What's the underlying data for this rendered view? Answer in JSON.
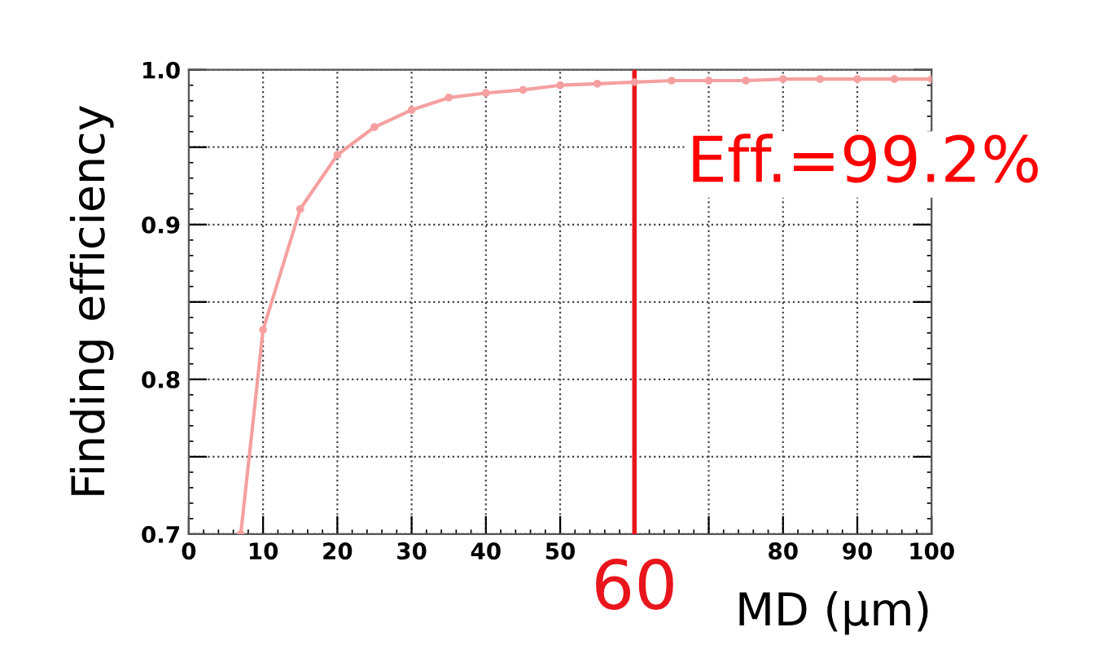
{
  "chart_data": {
    "type": "line",
    "xlabel": "MD (μm)",
    "ylabel": "Finding efficiency",
    "x": [
      7,
      10,
      15,
      20,
      25,
      30,
      35,
      40,
      45,
      50,
      55,
      60,
      65,
      70,
      75,
      80,
      85,
      90,
      95,
      100
    ],
    "series": [
      {
        "color": "#f5a0a0",
        "values": [
          0.7,
          0.832,
          0.91,
          0.945,
          0.963,
          0.974,
          0.982,
          0.985,
          0.987,
          0.99,
          0.991,
          0.992,
          0.993,
          0.993,
          0.993,
          0.994,
          0.994,
          0.994,
          0.994,
          0.994
        ]
      }
    ],
    "xlim": [
      0,
      100
    ],
    "ylim": [
      0.7,
      1.0
    ],
    "xticks": [
      0,
      10,
      20,
      30,
      40,
      50,
      {
        "value": 60,
        "label": null
      },
      {
        "value": 70,
        "label": null
      },
      80,
      90,
      100
    ],
    "yticks": [
      0.7,
      {
        "value": 0.75,
        "label": null
      },
      0.8,
      {
        "value": 0.85,
        "label": null
      },
      0.9,
      {
        "value": 0.95,
        "label": null
      },
      {
        "value": 1.0,
        "label": "1.0"
      }
    ],
    "grid": true,
    "marker": "circle",
    "line_style": "solid",
    "ref_lines": [
      {
        "axis": "x",
        "value": 60,
        "label": "60",
        "color": "#e8161c"
      }
    ],
    "annotations": [
      "Eff.=99.2%"
    ]
  }
}
